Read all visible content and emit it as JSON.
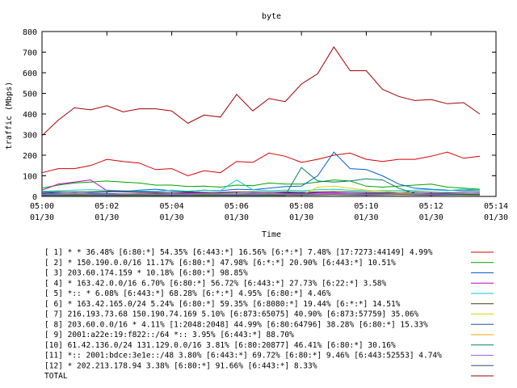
{
  "chart_data": {
    "type": "line",
    "title": "byte",
    "xlabel": "Time",
    "ylabel": "traffic (Mbps)",
    "ylim": [
      0,
      800
    ],
    "yticks": [
      0,
      100,
      200,
      300,
      400,
      500,
      600,
      700,
      800
    ],
    "xlim": [
      0,
      14
    ],
    "x_unit": "minutes after 05:00 on 01/30",
    "xticks": [
      {
        "x": 0,
        "time": "05:00",
        "date": "01/30"
      },
      {
        "x": 2,
        "time": "05:02",
        "date": "01/30"
      },
      {
        "x": 4,
        "time": "05:04",
        "date": "01/30"
      },
      {
        "x": 6,
        "time": "05:06",
        "date": "01/30"
      },
      {
        "x": 8,
        "time": "05:08",
        "date": "01/30"
      },
      {
        "x": 10,
        "time": "05:10",
        "date": "01/30"
      },
      {
        "x": 12,
        "time": "05:12",
        "date": "01/30"
      },
      {
        "x": 14,
        "time": "05:14",
        "date": "01/30"
      }
    ],
    "grid": false,
    "legend_position": "bottom",
    "x": [
      0,
      0.5,
      1,
      1.5,
      2,
      2.5,
      3,
      3.5,
      4,
      4.5,
      5,
      5.5,
      6,
      6.5,
      7,
      7.5,
      8,
      8.5,
      9,
      9.5,
      10,
      10.5,
      11,
      11.5,
      12,
      12.5,
      13,
      13.5
    ],
    "series": [
      {
        "name": "[ 1] * * 36.48%  [6:80:*] 54.35% [6:443:*] 16.56% [6:*:*] 7.48% [17:7273:44149] 4.99%",
        "color": "#d40000",
        "values": [
          115,
          135,
          135,
          150,
          180,
          170,
          162,
          130,
          135,
          100,
          125,
          115,
          170,
          165,
          210,
          195,
          165,
          180,
          200,
          210,
          180,
          170,
          180,
          180,
          195,
          215,
          185,
          195
        ]
      },
      {
        "name": "[ 2] * 150.190.0.0/16 11.17%  [6:80:*] 47.98% [6:*:*] 20.90% [6:443:*] 10.51%",
        "color": "#00a000",
        "values": [
          40,
          55,
          65,
          70,
          75,
          70,
          65,
          55,
          55,
          48,
          50,
          45,
          55,
          52,
          65,
          60,
          60,
          70,
          80,
          75,
          50,
          45,
          50,
          55,
          60,
          45,
          40,
          35
        ]
      },
      {
        "name": "[ 3] 203.60.174.159 * 10.18%  [6:80:*] 98.85%",
        "color": "#0060d0",
        "values": [
          15,
          20,
          22,
          20,
          22,
          25,
          30,
          35,
          28,
          25,
          30,
          28,
          35,
          32,
          40,
          48,
          50,
          100,
          215,
          135,
          130,
          100,
          60,
          40,
          35,
          30,
          28,
          30
        ]
      },
      {
        "name": "[ 4] * 163.42.0.0/16 6.70%  [6:80:*] 56.72% [6:443:*] 27.73% [6:22:*] 3.58%",
        "color": "#c000c0",
        "values": [
          30,
          60,
          70,
          80,
          28,
          25,
          22,
          20,
          20,
          18,
          18,
          20,
          22,
          20,
          20,
          18,
          16,
          18,
          18,
          15,
          15,
          15,
          14,
          14,
          14,
          13,
          13,
          14
        ]
      },
      {
        "name": "[ 5] *:: * 6.08%  [6:443:*] 68.28% [6:*:*] 4.95% [6:80:*] 4.46%",
        "color": "#00c8d8",
        "values": [
          25,
          28,
          30,
          32,
          30,
          28,
          26,
          25,
          30,
          25,
          30,
          28,
          80,
          32,
          28,
          30,
          28,
          32,
          35,
          30,
          28,
          28,
          28,
          30,
          32,
          28,
          35,
          30
        ]
      },
      {
        "name": "[ 6] * 163.42.165.0/24 5.24%  [6:80:*] 59.35% [6:8080:*] 19.44% [6:*:*] 14.51%",
        "color": "#404000",
        "values": [
          20,
          22,
          20,
          22,
          24,
          22,
          20,
          18,
          20,
          22,
          20,
          18,
          20,
          22,
          20,
          22,
          20,
          22,
          24,
          22,
          20,
          18,
          20,
          22,
          20,
          18,
          20,
          22
        ]
      },
      {
        "name": "[ 7] 216.193.73.68 150.190.74.169 5.10%  [6:873:65075] 40.90% [6:873:57759] 35.06%",
        "color": "#d8d800",
        "values": [
          5,
          6,
          5,
          7,
          6,
          5,
          6,
          5,
          7,
          6,
          5,
          6,
          5,
          7,
          6,
          5,
          6,
          45,
          50,
          40,
          30,
          25,
          20,
          15,
          10,
          8,
          6,
          5
        ]
      },
      {
        "name": "[ 8] 203.60.0.0/16 * 4.11%  [1:2048:2048] 44.99% [6:80:64796] 38.28% [6:80:*] 15.33%",
        "color": "#2050a0",
        "values": [
          12,
          14,
          13,
          15,
          14,
          13,
          12,
          14,
          13,
          15,
          14,
          13,
          12,
          14,
          13,
          15,
          14,
          13,
          12,
          14,
          13,
          15,
          14,
          13,
          12,
          14,
          13,
          15
        ]
      },
      {
        "name": "[ 9] 2001:a22e:19:f822::/64 *:: 3.95%  [6:443:*] 88.70%",
        "color": "#f0a000",
        "values": [
          8,
          9,
          10,
          9,
          8,
          9,
          10,
          9,
          8,
          9,
          10,
          9,
          8,
          9,
          10,
          9,
          8,
          9,
          10,
          9,
          8,
          9,
          10,
          9,
          8,
          9,
          10,
          9
        ]
      },
      {
        "name": "[10] 61.42.136.0/24 131.129.0.0/16 3.81%  [6:80:20877] 46.41% [6:80:*] 30.16%",
        "color": "#008060",
        "values": [
          5,
          5,
          5,
          5,
          5,
          5,
          5,
          5,
          5,
          5,
          5,
          5,
          5,
          5,
          5,
          5,
          140,
          75,
          70,
          75,
          85,
          80,
          40,
          15,
          10,
          10,
          10,
          10
        ]
      },
      {
        "name": "[11] *:: 2001:bdce:3e1e::/48 3.80%  [6:443:*] 69.72% [6:80:*] 9.46% [6:443:52553] 4.74%",
        "color": "#a060f0",
        "values": [
          10,
          12,
          14,
          12,
          10,
          12,
          14,
          12,
          10,
          12,
          14,
          12,
          10,
          12,
          14,
          12,
          10,
          12,
          14,
          12,
          10,
          12,
          14,
          12,
          10,
          12,
          14,
          12
        ]
      },
      {
        "name": "[12] * 202.213.178.94 3.38%  [6:80:*] 91.66% [6:443:*] 8.33%",
        "color": "#305070",
        "values": [
          6,
          7,
          8,
          7,
          6,
          7,
          8,
          7,
          6,
          7,
          8,
          7,
          6,
          7,
          8,
          7,
          6,
          7,
          8,
          7,
          6,
          7,
          8,
          7,
          6,
          7,
          8,
          7
        ]
      },
      {
        "name": "TOTAL",
        "color": "#a00000",
        "values": [
          295,
          370,
          430,
          420,
          440,
          410,
          425,
          425,
          415,
          355,
          395,
          385,
          495,
          415,
          475,
          460,
          545,
          595,
          725,
          610,
          610,
          520,
          485,
          465,
          470,
          450,
          455,
          400
        ]
      }
    ]
  }
}
